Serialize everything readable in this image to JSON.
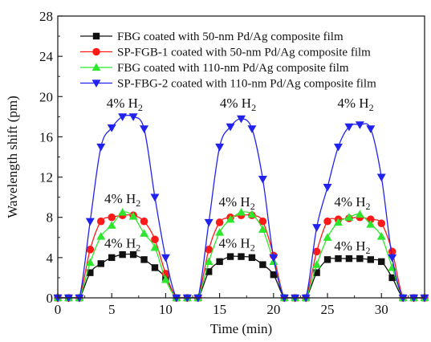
{
  "chart_data": {
    "type": "line",
    "xlabel": "Time (min)",
    "ylabel": "Wavelength shift (pm)",
    "xlim": [
      0,
      34
    ],
    "ylim": [
      0,
      28
    ],
    "x_ticks": [
      0,
      5,
      10,
      15,
      20,
      25,
      30
    ],
    "y_ticks": [
      0,
      4,
      8,
      12,
      16,
      20,
      24,
      28
    ],
    "grid": false,
    "legend_position": "top-right",
    "series": [
      {
        "name": "FBG coated with 50-nm Pd/Ag composite film",
        "color": "#111111",
        "marker": "square",
        "x": [
          0,
          1,
          2,
          3,
          4,
          5,
          6,
          7,
          8,
          9,
          10,
          11,
          12,
          13,
          14,
          15,
          16,
          17,
          18,
          19,
          20,
          21,
          22,
          23,
          24,
          25,
          26,
          27,
          28,
          29,
          30,
          31,
          32,
          33,
          34
        ],
        "y": [
          0,
          0,
          0,
          2.5,
          3.4,
          4.0,
          4.3,
          4.3,
          3.8,
          3.0,
          2.0,
          0,
          0,
          0,
          2.6,
          3.6,
          4.1,
          4.1,
          4.0,
          3.3,
          2.3,
          0,
          0,
          0,
          2.5,
          3.8,
          3.9,
          3.9,
          3.9,
          3.8,
          3.6,
          2.0,
          0,
          0,
          0
        ]
      },
      {
        "name": "SP-FGB-1 coated with 50-nm Pd/Ag composite film",
        "color": "#ff1a1a",
        "marker": "circle",
        "x": [
          0,
          1,
          2,
          3,
          4,
          5,
          6,
          7,
          8,
          9,
          10,
          11,
          12,
          13,
          14,
          15,
          16,
          17,
          18,
          19,
          20,
          21,
          22,
          23,
          24,
          25,
          26,
          27,
          28,
          29,
          30,
          31,
          32,
          33,
          34
        ],
        "y": [
          0,
          0,
          0,
          4.8,
          7.6,
          8.0,
          8.2,
          8.2,
          7.6,
          5.8,
          2.4,
          0,
          0,
          0,
          4.8,
          7.5,
          8.0,
          8.2,
          8.2,
          7.6,
          4.2,
          0,
          0,
          0,
          4.6,
          7.6,
          7.8,
          7.9,
          8.0,
          7.8,
          7.4,
          4.6,
          0,
          0,
          0
        ]
      },
      {
        "name": "FBG coated with 110-nm Pd/Ag composite film",
        "color": "#2ee62e",
        "marker": "triangle-up",
        "x": [
          0,
          1,
          2,
          3,
          4,
          5,
          6,
          7,
          8,
          9,
          10,
          11,
          12,
          13,
          14,
          15,
          16,
          17,
          18,
          19,
          20,
          21,
          22,
          23,
          24,
          25,
          26,
          27,
          28,
          29,
          30,
          31,
          32,
          33,
          34
        ],
        "y": [
          0,
          0,
          0,
          3.5,
          6.1,
          7.2,
          8.5,
          8.1,
          6.4,
          5.0,
          1.8,
          0,
          0,
          0,
          3.6,
          6.5,
          7.8,
          8.5,
          8.3,
          6.8,
          3.6,
          0,
          0,
          0,
          3.3,
          6.0,
          7.5,
          8.0,
          8.3,
          7.3,
          6.1,
          3.0,
          0,
          0,
          0
        ]
      },
      {
        "name": "SP-FBG-2 coated with 110-nm Pd/Ag composite film",
        "color": "#2222ee",
        "marker": "triangle-down",
        "x": [
          0,
          1,
          2,
          3,
          4,
          5,
          6,
          7,
          8,
          9,
          10,
          11,
          12,
          13,
          14,
          15,
          16,
          17,
          18,
          19,
          20,
          21,
          22,
          23,
          24,
          25,
          26,
          27,
          28,
          29,
          30,
          31,
          32,
          33,
          34
        ],
        "y": [
          0,
          0,
          0,
          7.6,
          15.0,
          16.9,
          18.0,
          18.0,
          16.8,
          10.0,
          4.0,
          0,
          0,
          0,
          7.5,
          15.0,
          17.0,
          17.8,
          16.8,
          11.8,
          4.0,
          0,
          0,
          0,
          7.0,
          11.0,
          15.0,
          17.0,
          17.2,
          16.8,
          12.0,
          4.0,
          0,
          0,
          0
        ]
      }
    ],
    "annotations": [
      {
        "text": "4% H",
        "subscript": "2",
        "x": 6.2,
        "y": 18.9
      },
      {
        "text": "4% H",
        "subscript": "2",
        "x": 16.7,
        "y": 18.9
      },
      {
        "text": "4% H",
        "subscript": "2",
        "x": 27.6,
        "y": 18.9
      },
      {
        "text": "4% H",
        "subscript": "2",
        "x": 6.0,
        "y": 9.4
      },
      {
        "text": "4% H",
        "subscript": "2",
        "x": 16.6,
        "y": 9.1
      },
      {
        "text": "4% H",
        "subscript": "2",
        "x": 27.3,
        "y": 9.1
      },
      {
        "text": "4% H",
        "subscript": "2",
        "x": 6.0,
        "y": 5.0
      },
      {
        "text": "4% H",
        "subscript": "2",
        "x": 16.6,
        "y": 5.0
      },
      {
        "text": "4% H",
        "subscript": "2",
        "x": 27.3,
        "y": 4.7
      }
    ]
  }
}
